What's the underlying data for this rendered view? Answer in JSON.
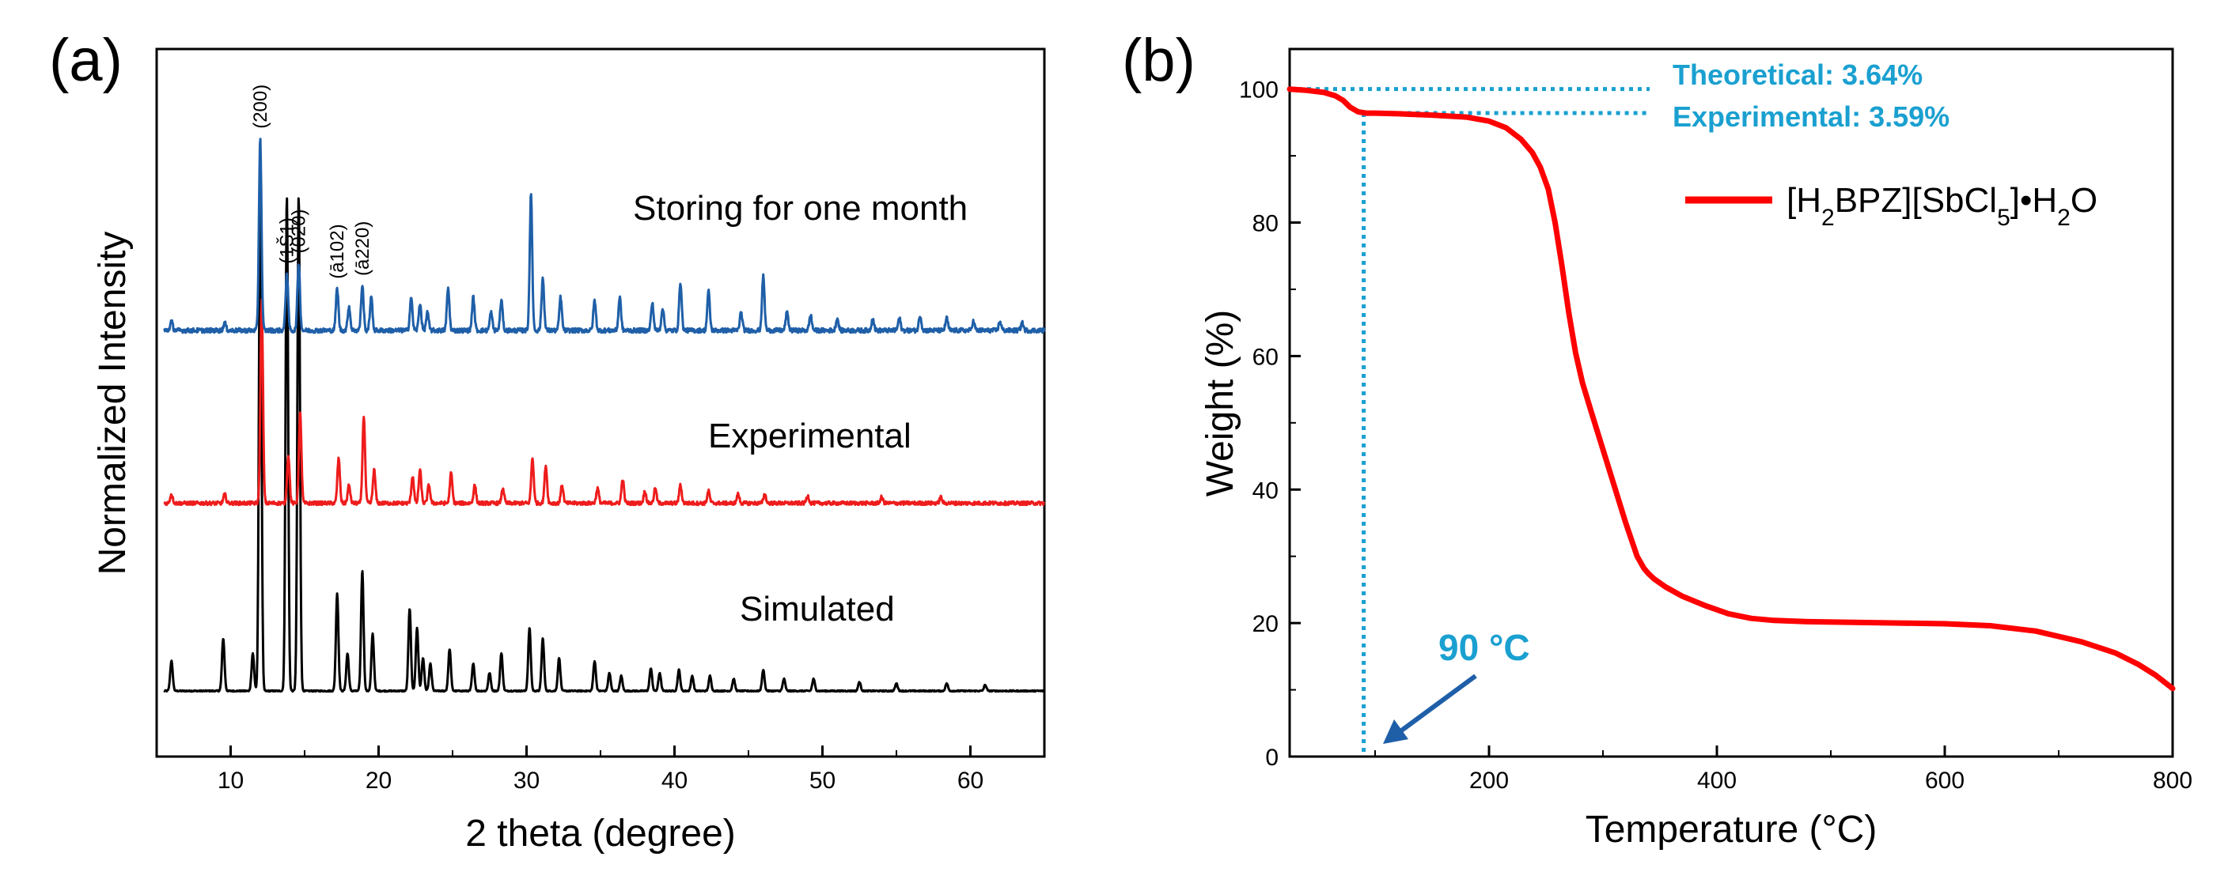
{
  "figure": {
    "panel_a_label": "(a)",
    "panel_b_label": "(b)"
  },
  "chart_data": [
    {
      "type": "line",
      "title": "",
      "xlabel": "2 theta (degree)",
      "ylabel": "Normalized Intensity",
      "xlim": [
        5,
        65
      ],
      "ylim": [
        0,
        4.2
      ],
      "x_ticks": [
        10,
        20,
        30,
        40,
        50,
        60
      ],
      "y_ticks_shown": false,
      "grid": false,
      "series": [
        {
          "name": "Simulated",
          "color": "#000000",
          "baseline": 0.2,
          "noise": 0.004,
          "peaks": [
            [
              6.0,
              0.2
            ],
            [
              9.5,
              0.35
            ],
            [
              11.5,
              0.25
            ],
            [
              12.0,
              3.4
            ],
            [
              13.8,
              3.3
            ],
            [
              14.6,
              3.3
            ],
            [
              17.2,
              0.65
            ],
            [
              17.9,
              0.25
            ],
            [
              18.9,
              0.8
            ],
            [
              19.6,
              0.38
            ],
            [
              22.1,
              0.55
            ],
            [
              22.6,
              0.42
            ],
            [
              23.0,
              0.22
            ],
            [
              23.5,
              0.18
            ],
            [
              24.8,
              0.28
            ],
            [
              26.4,
              0.18
            ],
            [
              27.5,
              0.12
            ],
            [
              28.3,
              0.25
            ],
            [
              30.2,
              0.42
            ],
            [
              31.1,
              0.35
            ],
            [
              32.2,
              0.22
            ],
            [
              34.6,
              0.2
            ],
            [
              35.6,
              0.12
            ],
            [
              36.4,
              0.1
            ],
            [
              38.4,
              0.15
            ],
            [
              39.0,
              0.12
            ],
            [
              40.3,
              0.14
            ],
            [
              41.2,
              0.1
            ],
            [
              42.4,
              0.1
            ],
            [
              44.0,
              0.08
            ],
            [
              46.0,
              0.14
            ],
            [
              47.4,
              0.08
            ],
            [
              49.4,
              0.08
            ],
            [
              52.5,
              0.06
            ],
            [
              55.0,
              0.05
            ],
            [
              58.4,
              0.05
            ],
            [
              61.0,
              0.04
            ]
          ]
        },
        {
          "name": "Experimental",
          "color": "#ee1c1c",
          "baseline": 1.45,
          "noise": 0.012,
          "peaks": [
            [
              6.0,
              0.06
            ],
            [
              9.6,
              0.06
            ],
            [
              12.1,
              1.35
            ],
            [
              13.9,
              0.32
            ],
            [
              14.7,
              0.6
            ],
            [
              17.3,
              0.3
            ],
            [
              18.0,
              0.12
            ],
            [
              19.0,
              0.58
            ],
            [
              19.7,
              0.22
            ],
            [
              22.3,
              0.18
            ],
            [
              22.8,
              0.22
            ],
            [
              23.4,
              0.12
            ],
            [
              24.9,
              0.2
            ],
            [
              26.5,
              0.12
            ],
            [
              28.4,
              0.1
            ],
            [
              30.4,
              0.3
            ],
            [
              31.3,
              0.25
            ],
            [
              32.4,
              0.12
            ],
            [
              34.8,
              0.1
            ],
            [
              36.5,
              0.16
            ],
            [
              38.0,
              0.08
            ],
            [
              38.7,
              0.1
            ],
            [
              40.4,
              0.12
            ],
            [
              42.3,
              0.08
            ],
            [
              44.3,
              0.06
            ],
            [
              46.1,
              0.06
            ],
            [
              49.0,
              0.05
            ],
            [
              54.0,
              0.04
            ],
            [
              58.0,
              0.04
            ]
          ]
        },
        {
          "name": "Storing for one month",
          "color": "#1f5fa8",
          "baseline": 2.6,
          "noise": 0.015,
          "peaks": [
            [
              6.0,
              0.06
            ],
            [
              9.6,
              0.05
            ],
            [
              12.0,
              1.28
            ],
            [
              13.8,
              0.38
            ],
            [
              14.6,
              0.45
            ],
            [
              17.2,
              0.28
            ],
            [
              18.0,
              0.16
            ],
            [
              18.9,
              0.3
            ],
            [
              19.5,
              0.22
            ],
            [
              22.2,
              0.22
            ],
            [
              22.8,
              0.18
            ],
            [
              23.3,
              0.12
            ],
            [
              24.7,
              0.28
            ],
            [
              26.4,
              0.22
            ],
            [
              27.6,
              0.12
            ],
            [
              28.3,
              0.2
            ],
            [
              30.3,
              0.9
            ],
            [
              31.1,
              0.35
            ],
            [
              32.3,
              0.22
            ],
            [
              34.6,
              0.2
            ],
            [
              36.3,
              0.22
            ],
            [
              38.5,
              0.18
            ],
            [
              39.2,
              0.15
            ],
            [
              40.4,
              0.32
            ],
            [
              42.3,
              0.26
            ],
            [
              44.5,
              0.12
            ],
            [
              46.0,
              0.36
            ],
            [
              47.6,
              0.12
            ],
            [
              49.2,
              0.1
            ],
            [
              51.0,
              0.08
            ],
            [
              53.4,
              0.08
            ],
            [
              55.2,
              0.08
            ],
            [
              56.6,
              0.1
            ],
            [
              58.4,
              0.08
            ],
            [
              60.2,
              0.06
            ],
            [
              62.0,
              0.06
            ],
            [
              63.5,
              0.05
            ]
          ]
        }
      ],
      "peak_labels": [
        {
          "hkl": "(200)",
          "x": 12.0
        },
        {
          "hkl": "(1Š1)",
          "x": 13.8
        },
        {
          "hkl": "(020)",
          "x": 14.6
        },
        {
          "hkl": "(ā102)",
          "x": 17.2
        },
        {
          "hkl": "(ā220)",
          "x": 18.9
        }
      ],
      "series_labels": [
        "Storing for one month",
        "Experimental",
        "Simulated"
      ]
    },
    {
      "type": "line",
      "title": "",
      "xlabel": "Temperature (°C)",
      "ylabel": "Weight (%)",
      "xlim": [
        25,
        800
      ],
      "ylim": [
        0,
        106
      ],
      "x_ticks": [
        200,
        400,
        600,
        800
      ],
      "y_ticks": [
        0,
        20,
        40,
        60,
        80,
        100
      ],
      "grid": false,
      "series": [
        {
          "name": "[H2BPZ][SbCl5]•H2O",
          "color": "#ff0000",
          "x": [
            25,
            40,
            55,
            65,
            72,
            78,
            85,
            92,
            100,
            120,
            150,
            180,
            200,
            215,
            228,
            238,
            245,
            252,
            258,
            264,
            270,
            276,
            282,
            290,
            300,
            310,
            320,
            330,
            336,
            340,
            345,
            355,
            370,
            390,
            410,
            430,
            450,
            480,
            520,
            560,
            600,
            640,
            680,
            720,
            750,
            770,
            785,
            800
          ],
          "y": [
            100,
            99.8,
            99.5,
            99,
            98.3,
            97.3,
            96.6,
            96.4,
            96.4,
            96.3,
            96.1,
            95.8,
            95.2,
            94.2,
            92.5,
            90.5,
            88.3,
            85,
            80,
            73.5,
            66.5,
            60.5,
            56,
            51.5,
            46,
            40.5,
            35,
            30,
            28.2,
            27.4,
            26.6,
            25.4,
            24,
            22.6,
            21.4,
            20.7,
            20.4,
            20.2,
            20.1,
            20,
            19.9,
            19.6,
            18.8,
            17.2,
            15.5,
            13.8,
            12.2,
            10.2
          ]
        }
      ],
      "legend": {
        "label_main": "[H",
        "sub1": "2",
        "label_mid": "BPZ][SbCl",
        "sub2": "5",
        "label_mid2": "]•H",
        "sub3": "2",
        "label_end": "O",
        "position": "top-right"
      },
      "annotations": {
        "theoretical": "Theoretical: 3.64%",
        "experimental": "Experimental: 3.59%",
        "onset": "90 °C",
        "onset_temp": 90,
        "theoretical_weight": 100,
        "experimental_weight": 96.4
      }
    }
  ],
  "colors": {
    "annotation": "#1aa0d0",
    "arrow": "#1f5fa8"
  }
}
